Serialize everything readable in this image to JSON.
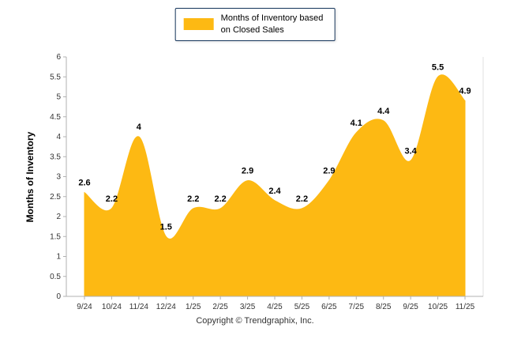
{
  "legend": {
    "lines": [
      "Months of Inventory based",
      "on Closed Sales"
    ],
    "swatch_color": "#FDB913"
  },
  "footer": "Copyright © Trendgraphix, Inc.",
  "chart_data": {
    "type": "area",
    "title": "",
    "xlabel": "",
    "ylabel": "Months of Inventory",
    "categories": [
      "9/24",
      "10/24",
      "11/24",
      "12/24",
      "1/25",
      "2/25",
      "3/25",
      "4/25",
      "5/25",
      "6/25",
      "7/25",
      "8/25",
      "9/25",
      "10/25",
      "11/25"
    ],
    "series": [
      {
        "name": "Months of Inventory based on Closed Sales",
        "values": [
          2.6,
          2.2,
          4,
          1.5,
          2.2,
          2.2,
          2.9,
          2.4,
          2.2,
          2.9,
          4.1,
          4.4,
          3.4,
          5.5,
          4.9
        ]
      }
    ],
    "ylim": [
      0,
      6
    ],
    "ytick_step": 0.5,
    "grid": false,
    "legend_position": "top",
    "area_color": "#FDB913",
    "axis_color": "#b0b0b0",
    "tick_text_color": "#333333",
    "label_color": "#000000"
  }
}
